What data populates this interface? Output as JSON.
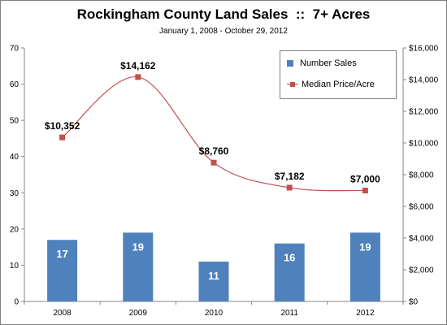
{
  "chart_data": {
    "type": "bar+line",
    "title": "Rockingham County Land Sales  ::  7+ Acres",
    "subtitle": "January 1, 2008 - October 29, 2012",
    "categories": [
      "2008",
      "2009",
      "2010",
      "2011",
      "2012"
    ],
    "series": [
      {
        "name": "Number Sales",
        "type": "bar",
        "axis": "left",
        "color": "#4f81bd",
        "values": [
          17,
          19,
          11,
          16,
          19
        ],
        "labels": [
          "17",
          "19",
          "11",
          "16",
          "19"
        ]
      },
      {
        "name": "Median Price/Acre",
        "type": "line",
        "axis": "right",
        "color": "#c0504d",
        "values": [
          10352,
          14162,
          8760,
          7182,
          7000
        ],
        "labels": [
          "$10,352",
          "$14,162",
          "$8,760",
          "$7,182",
          "$7,000"
        ]
      }
    ],
    "y_left": {
      "min": 0,
      "max": 70,
      "ticks": [
        "0",
        "10",
        "20",
        "30",
        "40",
        "50",
        "60",
        "70"
      ]
    },
    "y_right": {
      "min": 0,
      "max": 16000,
      "ticks": [
        "$0",
        "$2,000",
        "$4,000",
        "$6,000",
        "$8,000",
        "$10,000",
        "$12,000",
        "$14,000",
        "$16,000"
      ]
    },
    "legend": "top-right",
    "grid": false
  }
}
